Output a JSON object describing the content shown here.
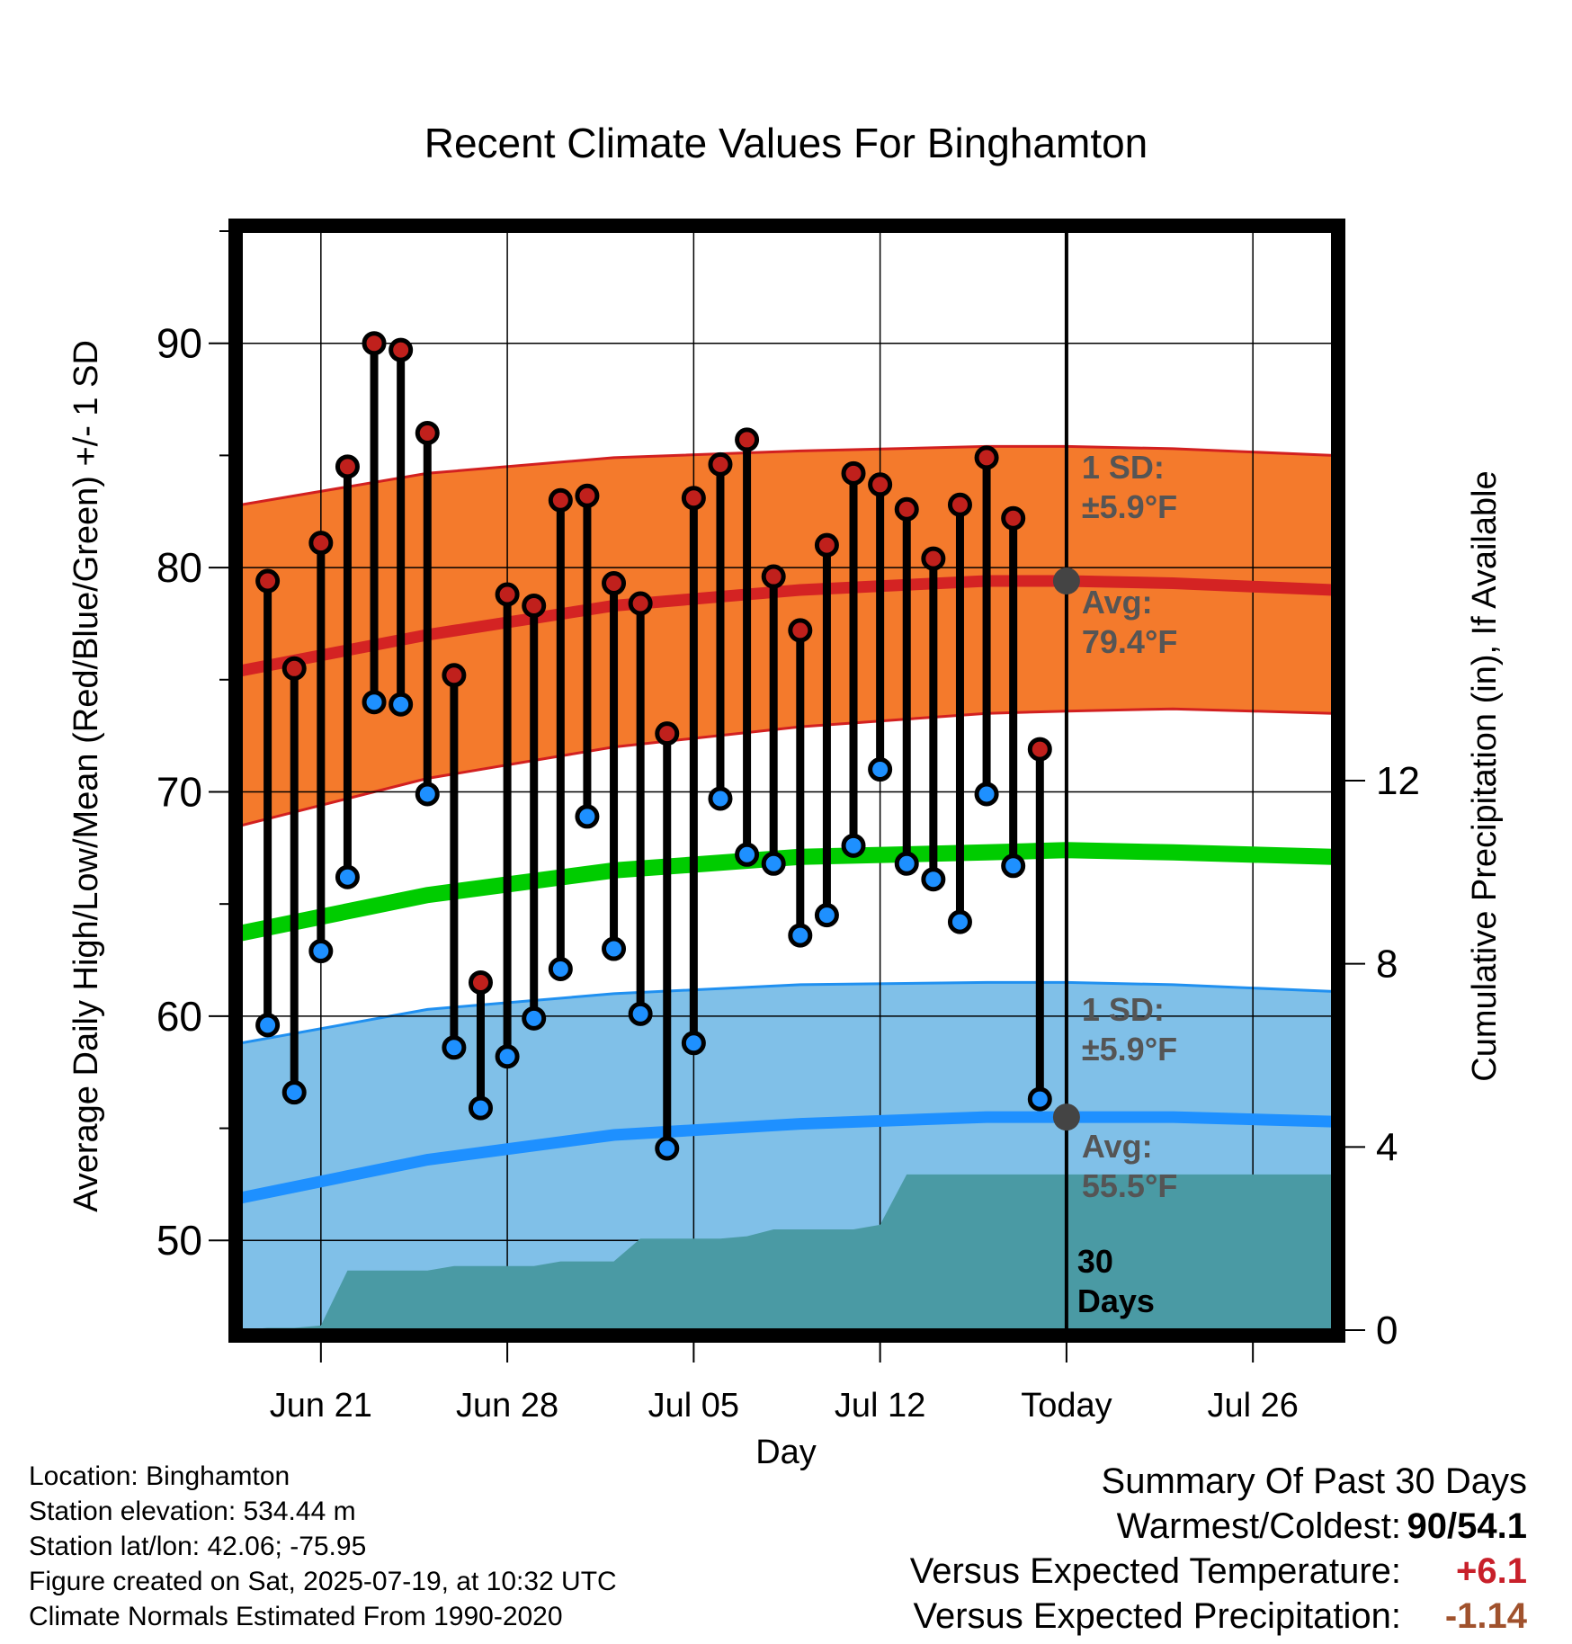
{
  "chart_data": {
    "type": "line",
    "title": "Recent Climate Values For Binghamton",
    "xlabel": "Day",
    "ylabel": "Average Daily High/Low/Mean (Red/Blue/Green) +/- 1 SD",
    "y2label": "Cumulative Precipitation (in), If Available",
    "ylim": [
      46,
      95
    ],
    "y2lim": [
      0,
      24
    ],
    "y_ticks": [
      50,
      60,
      70,
      80,
      90
    ],
    "y2_ticks": [
      0,
      4,
      8,
      12
    ],
    "x_tick_labels": [
      "Jun 21",
      "Jun 28",
      "Jul 05",
      "Jul 12",
      "Today",
      "Jul 26"
    ],
    "x_range": [
      "2025-06-18",
      "2025-07-29"
    ],
    "x_tick_dates": [
      "2025-06-21",
      "2025-06-28",
      "2025-07-05",
      "2025-07-12",
      "2025-07-19",
      "2025-07-26"
    ],
    "grid": true,
    "colors": {
      "high_points": "#c0201c",
      "low_points": "#1e90ff",
      "high_band": "#f47a2c",
      "high_band_edge": "#d22020",
      "high_avg": "#d42323",
      "low_band": "#80c0e8",
      "low_band_edge": "#2090f0",
      "low_avg": "#1e90ff",
      "mean_avg": "#00cc00",
      "precip": "#4a9aa4",
      "today_marker": "#444444",
      "annotation": "#555555"
    },
    "observations": {
      "dates": [
        "2025-06-19",
        "2025-06-20",
        "2025-06-21",
        "2025-06-22",
        "2025-06-23",
        "2025-06-24",
        "2025-06-25",
        "2025-06-26",
        "2025-06-27",
        "2025-06-28",
        "2025-06-29",
        "2025-06-30",
        "2025-07-01",
        "2025-07-02",
        "2025-07-03",
        "2025-07-04",
        "2025-07-05",
        "2025-07-06",
        "2025-07-07",
        "2025-07-08",
        "2025-07-09",
        "2025-07-10",
        "2025-07-11",
        "2025-07-12",
        "2025-07-13",
        "2025-07-14",
        "2025-07-15",
        "2025-07-16",
        "2025-07-17",
        "2025-07-18"
      ],
      "highs": [
        79.4,
        75.5,
        81.1,
        84.5,
        90.0,
        89.7,
        86.0,
        75.2,
        61.5,
        78.8,
        78.3,
        83.0,
        83.2,
        79.3,
        78.4,
        72.6,
        83.1,
        84.6,
        85.7,
        79.6,
        77.2,
        81.0,
        84.2,
        83.7,
        82.6,
        80.4,
        82.8,
        84.9,
        82.2,
        71.9
      ],
      "lows": [
        59.6,
        56.6,
        62.9,
        66.2,
        74.0,
        73.9,
        69.9,
        58.6,
        55.9,
        58.2,
        59.9,
        62.1,
        68.9,
        63.0,
        60.1,
        54.1,
        58.8,
        69.7,
        67.2,
        66.8,
        63.6,
        64.5,
        67.6,
        71.0,
        66.8,
        66.1,
        64.2,
        69.9,
        66.7,
        56.3
      ]
    },
    "normals": {
      "dates": [
        "2025-06-18",
        "2025-06-25",
        "2025-07-02",
        "2025-07-09",
        "2025-07-16",
        "2025-07-19",
        "2025-07-23",
        "2025-07-29"
      ],
      "high_avg": [
        75.4,
        77.0,
        78.3,
        79.0,
        79.4,
        79.4,
        79.3,
        79.0
      ],
      "high_sd_upper": [
        82.8,
        84.2,
        84.9,
        85.2,
        85.4,
        85.4,
        85.3,
        85.0
      ],
      "high_sd_lower": [
        68.5,
        70.6,
        72.0,
        72.9,
        73.5,
        73.6,
        73.7,
        73.5
      ],
      "mean_avg": [
        63.7,
        65.4,
        66.5,
        67.1,
        67.3,
        67.4,
        67.3,
        67.1
      ],
      "low_avg": [
        51.9,
        53.6,
        54.7,
        55.2,
        55.5,
        55.5,
        55.5,
        55.3
      ],
      "low_sd_upper": [
        58.8,
        60.3,
        61.0,
        61.4,
        61.5,
        61.5,
        61.4,
        61.1
      ],
      "low_sd_lower": [
        46.0,
        46.0,
        46.0,
        46.0,
        46.0,
        46.0,
        46.0,
        46.0
      ]
    },
    "precipitation": {
      "dates": [
        "2025-06-18",
        "2025-06-19",
        "2025-06-20",
        "2025-06-21",
        "2025-06-22",
        "2025-06-23",
        "2025-06-24",
        "2025-06-25",
        "2025-06-26",
        "2025-06-27",
        "2025-06-28",
        "2025-06-29",
        "2025-06-30",
        "2025-07-01",
        "2025-07-02",
        "2025-07-03",
        "2025-07-04",
        "2025-07-05",
        "2025-07-06",
        "2025-07-07",
        "2025-07-08",
        "2025-07-09",
        "2025-07-10",
        "2025-07-11",
        "2025-07-12",
        "2025-07-13",
        "2025-07-14",
        "2025-07-20",
        "2025-07-29"
      ],
      "cumulative": [
        0.0,
        0.05,
        0.05,
        0.1,
        1.3,
        1.3,
        1.3,
        1.3,
        1.4,
        1.4,
        1.4,
        1.4,
        1.5,
        1.5,
        1.5,
        2.0,
        2.0,
        2.0,
        2.0,
        2.05,
        2.2,
        2.2,
        2.2,
        2.2,
        2.3,
        3.4,
        3.4,
        3.4,
        3.4
      ]
    },
    "annotations": {
      "high_sd_label": "1 SD:",
      "high_sd_value": "±5.9°F",
      "high_avg_label": "Avg:",
      "high_avg_value": "79.4°F",
      "low_sd_label": "1 SD:",
      "low_sd_value": "±5.9°F",
      "low_avg_label": "Avg:",
      "low_avg_value": "55.5°F",
      "window_number": "30",
      "window_unit": "Days"
    }
  },
  "info": {
    "location": "Location: Binghamton",
    "elevation": "Station elevation: 534.44 m",
    "latlon": "Station lat/lon: 42.06; -75.95",
    "created": "Figure created on Sat, 2025-07-19, at 10:32 UTC",
    "normals": "Climate Normals Estimated From 1990-2020"
  },
  "summary": {
    "title": "Summary Of Past 30 Days",
    "warmest_label": "Warmest/Coldest:",
    "warmest_value": "90/54.1",
    "temp_label": "Versus Expected Temperature:",
    "temp_value": "+6.1",
    "temp_color": "#c8202a",
    "precip_label": "Versus Expected Precipitation:",
    "precip_value": "-1.14",
    "precip_color": "#a0522d"
  }
}
